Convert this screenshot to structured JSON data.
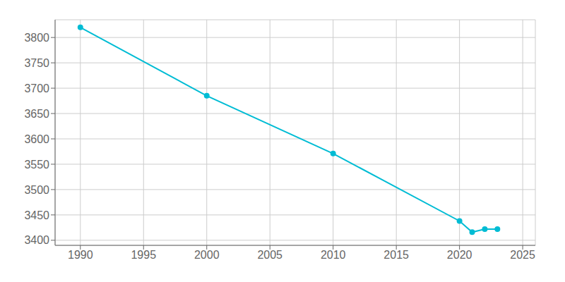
{
  "chart_data": {
    "type": "line",
    "x": [
      1990,
      2000,
      2010,
      2020,
      2021,
      2022,
      2023
    ],
    "values": [
      3820,
      3685,
      3571,
      3438,
      3416,
      3422,
      3422
    ],
    "color": "#00bcd4",
    "marker": "circle",
    "xlim": [
      1988,
      2026
    ],
    "ylim": [
      3390,
      3835
    ],
    "xticks": [
      1990,
      1995,
      2000,
      2005,
      2010,
      2015,
      2020,
      2025
    ],
    "yticks": [
      3400,
      3450,
      3500,
      3550,
      3600,
      3650,
      3700,
      3750,
      3800
    ],
    "grid": true
  }
}
